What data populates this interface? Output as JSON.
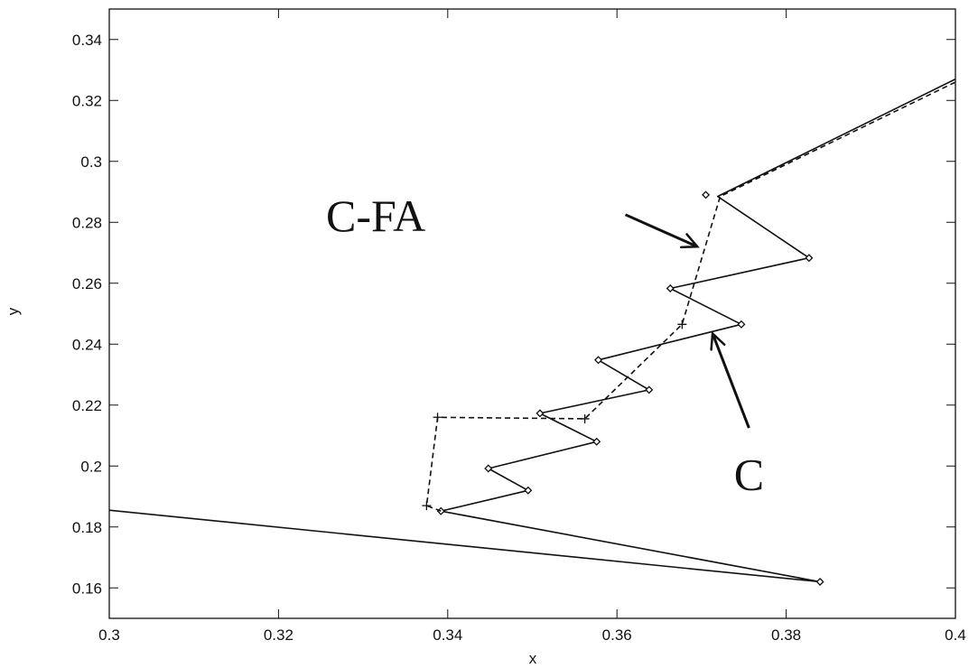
{
  "chart_data": {
    "type": "line",
    "xlabel": "x",
    "ylabel": "y",
    "xlim": [
      0.3,
      0.4
    ],
    "ylim": [
      0.15,
      0.35
    ],
    "xticks": [
      0.3,
      0.32,
      0.34,
      0.36,
      0.38,
      0.4
    ],
    "xtick_labels": [
      "0.3",
      "0.32",
      "0.34",
      "0.36",
      "0.38",
      "0.4"
    ],
    "yticks": [
      0.16,
      0.18,
      0.2,
      0.22,
      0.24,
      0.26,
      0.28,
      0.3,
      0.32,
      0.34
    ],
    "ytick_labels": [
      "0.16",
      "0.18",
      "0.2",
      "0.22",
      "0.24",
      "0.26",
      "0.28",
      "0.3",
      "0.32",
      "0.34"
    ],
    "grid": false,
    "legend": "none",
    "series": [
      {
        "style": "solid",
        "marker": "diamond",
        "x": [
          0.3,
          0.384,
          0.3392,
          0.3495,
          0.3448,
          0.3576,
          0.3509,
          0.3638,
          0.3578,
          0.3747,
          0.3663,
          0.3827,
          0.3719,
          0.4
        ],
        "y": [
          0.1855,
          0.162,
          0.1852,
          0.192,
          0.1992,
          0.208,
          0.2173,
          0.225,
          0.2348,
          0.2465,
          0.2583,
          0.2683,
          0.2885,
          0.327
        ],
        "marker_points": [
          [
            0.384,
            0.162
          ],
          [
            0.3392,
            0.1852
          ],
          [
            0.3495,
            0.192
          ],
          [
            0.3448,
            0.1992
          ],
          [
            0.3576,
            0.208
          ],
          [
            0.3509,
            0.2173
          ],
          [
            0.3638,
            0.225
          ],
          [
            0.3578,
            0.2348
          ],
          [
            0.3747,
            0.2465
          ],
          [
            0.3663,
            0.2583
          ],
          [
            0.3827,
            0.2683
          ],
          [
            0.3705,
            0.289
          ]
        ]
      },
      {
        "style": "dashed",
        "marker": "plus",
        "x": [
          0.3392,
          0.3375,
          0.3388,
          0.3562,
          0.3677,
          0.3722,
          0.4
        ],
        "y": [
          0.1852,
          0.187,
          0.216,
          0.2155,
          0.2465,
          0.2885,
          0.326
        ],
        "marker_points": [
          [
            0.3375,
            0.187
          ],
          [
            0.3388,
            0.216
          ],
          [
            0.3562,
            0.2155
          ],
          [
            0.3677,
            0.2465
          ]
        ]
      }
    ],
    "annotations": [
      {
        "text": "C-FA",
        "x": 0.3315,
        "y": 0.2825,
        "arrow_from": [
          0.361,
          0.2825
        ],
        "arrow_to": [
          0.3695,
          0.272
        ]
      },
      {
        "text": "C",
        "x": 0.3756,
        "y": 0.1975,
        "arrow_from": [
          0.3756,
          0.2125
        ],
        "arrow_to": [
          0.3713,
          0.2435
        ]
      }
    ]
  }
}
